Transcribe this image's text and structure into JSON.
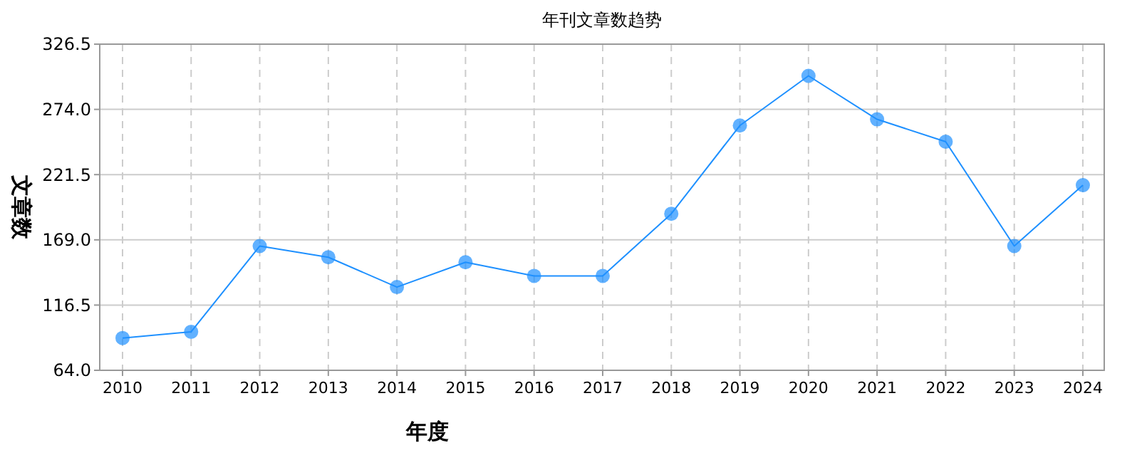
{
  "chart_data": {
    "type": "line",
    "title": "年刊文章数趋势",
    "xlabel": "年度",
    "ylabel": "文章数",
    "categories": [
      "2010",
      "2011",
      "2012",
      "2013",
      "2014",
      "2015",
      "2016",
      "2017",
      "2018",
      "2019",
      "2020",
      "2021",
      "2022",
      "2023",
      "2024"
    ],
    "series": [
      {
        "color": "#1e90ff",
        "values": [
          90,
          95,
          164,
          155,
          131,
          151,
          140,
          140,
          190,
          261,
          301,
          266,
          248,
          164,
          213
        ]
      }
    ],
    "ylim": [
      64,
      326.5
    ],
    "yticks": [
      {
        "value": 64,
        "label": "64.0"
      },
      {
        "value": 116.5,
        "label": "116.5"
      },
      {
        "value": 169,
        "label": "169.0"
      },
      {
        "value": 221.5,
        "label": "221.5"
      },
      {
        "value": 274,
        "label": "274.0"
      },
      {
        "value": 326.5,
        "label": "326.5"
      }
    ],
    "grid": true,
    "marker": "circle",
    "line_style": "solid"
  }
}
